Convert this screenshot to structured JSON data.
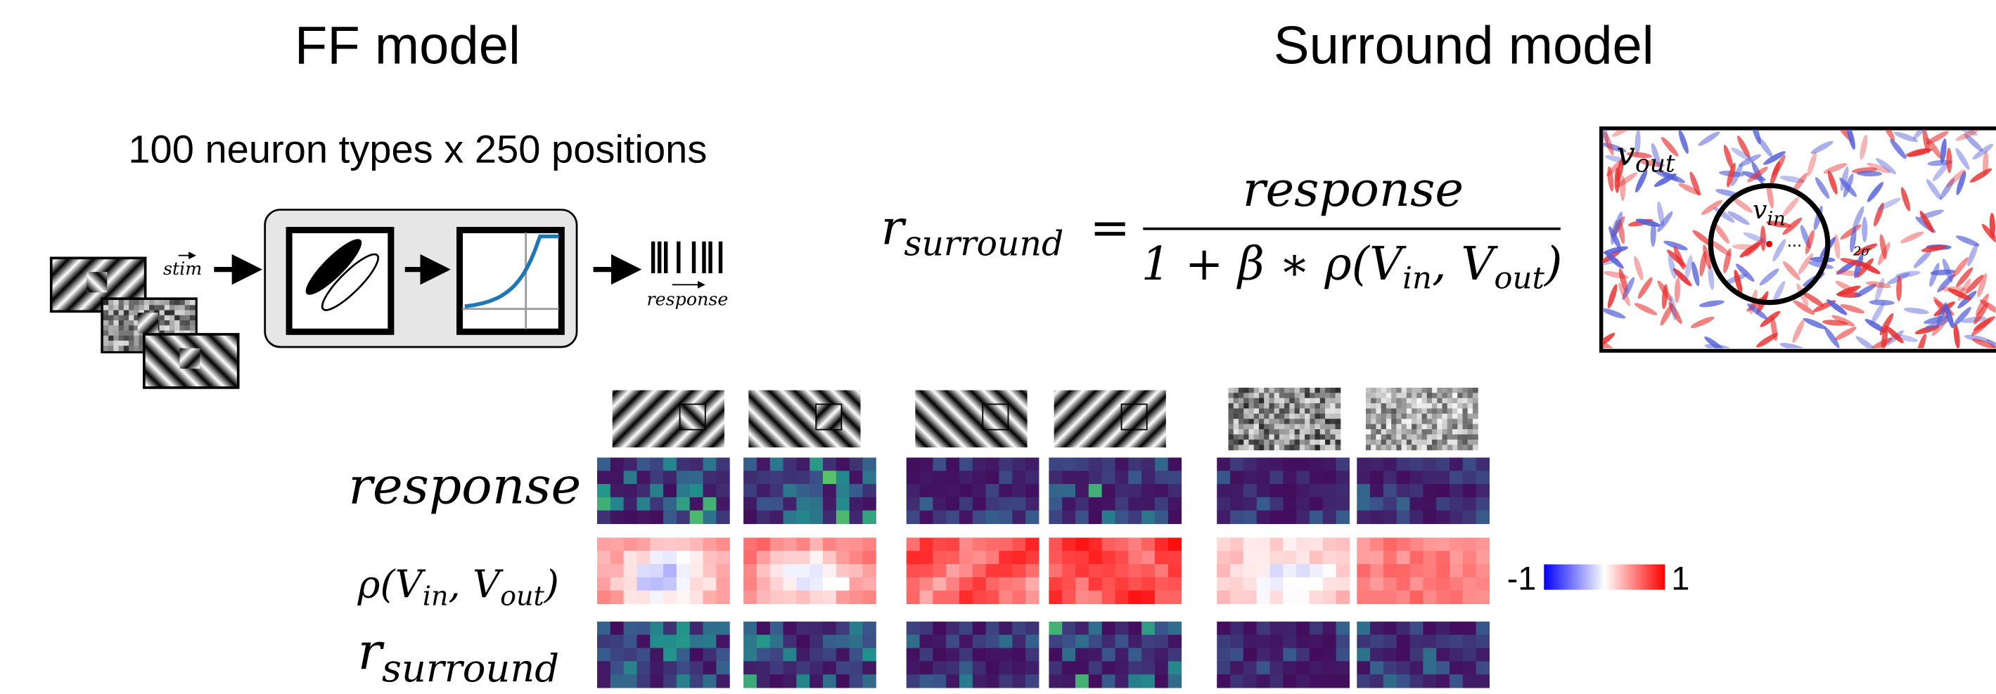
{
  "header": {
    "left_title": "FF model",
    "right_title": "Surround model"
  },
  "ff_model": {
    "subtitle": "100 neuron types x 250 positions",
    "input_label": "stim",
    "output_label": "response"
  },
  "formula": {
    "lhs": "r",
    "lhs_subscript": "surround",
    "equals": "=",
    "numerator": "response",
    "denominator_parts": [
      "1 + β ∗ ρ(V",
      "in",
      ", V",
      "out",
      ")"
    ]
  },
  "surround_diagram": {
    "outer_label": "v",
    "outer_subscript": "out",
    "inner_label": "v",
    "inner_subscript": "in",
    "dots": "...",
    "radius_label": "2σ"
  },
  "row_labels": {
    "response": "response",
    "rho_parts": [
      "ρ(V",
      "in",
      ", V",
      "out",
      ")"
    ],
    "r_main": "r",
    "r_subscript": "surround"
  },
  "colorbar": {
    "min": -1,
    "max": 1
  }
}
